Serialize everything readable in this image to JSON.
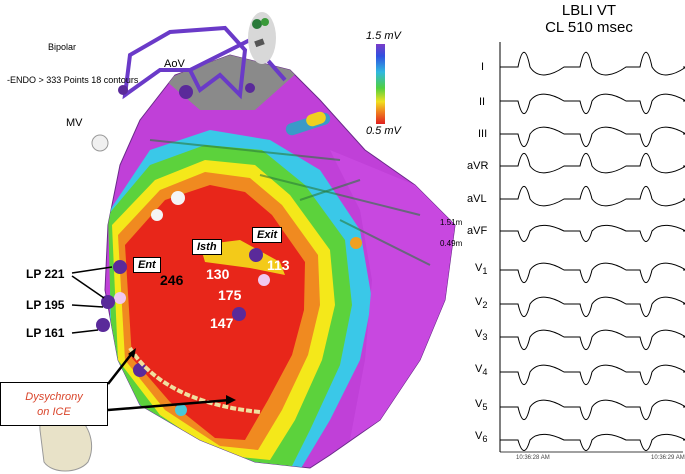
{
  "map": {
    "bipolar_label": "Bipolar",
    "endo_label": "-ENDO > 333 Points 18 contours",
    "aov_label": "AoV",
    "mv_label": "MV",
    "scale_high": "1.5 mV",
    "scale_low": "0.5 mV",
    "lp_labels": [
      "LP 221",
      "LP 195",
      "LP 161"
    ],
    "site_labels": {
      "ent": "Ent",
      "isth": "Isth",
      "exit": "Exit"
    },
    "numbers": [
      "246",
      "130",
      "113",
      "175",
      "147"
    ],
    "ice_line1": "Dysychrony",
    "ice_line2": "on ICE",
    "colors": {
      "scar_red": "#e8261a",
      "healthy_purple": "#c040d8",
      "border_green": "#5cd23c",
      "border_yellow": "#f4e81a",
      "border_cyan": "#3ac8e8"
    }
  },
  "ecg": {
    "title_line1": "LBLI VT",
    "title_line2": "CL 510 msec",
    "gain_top": "1.51m",
    "gain_bottom": "0.49m",
    "leads": [
      "I",
      "II",
      "III",
      "aVR",
      "aVL",
      "aVF",
      "V1",
      "V2",
      "V3",
      "V4",
      "V5",
      "V6"
    ],
    "timestamp_left": "10:36:28 AM",
    "timestamp_right": "10:36:29 AM"
  }
}
